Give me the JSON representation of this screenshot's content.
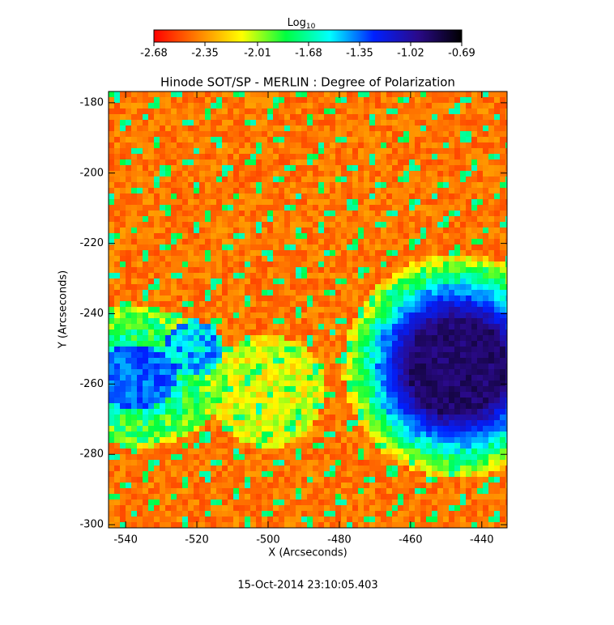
{
  "chart_data": {
    "type": "heatmap",
    "title": "Hinode SOT/SP - MERLIN : Degree of Polarization",
    "x_label": "X (Arcseconds)",
    "y_label": "Y (Arcseconds)",
    "footer": "15-Oct-2014 23:10:05.403",
    "colorbar_label": "Log",
    "colorbar_label_sub": "10",
    "colorbar_lim": [
      -2.68,
      -0.69
    ],
    "colorbar_ticks": [
      -2.68,
      -2.35,
      -2.01,
      -1.68,
      -1.35,
      -1.02,
      -0.69
    ],
    "colormap": [
      "#ff0000",
      "#ff8000",
      "#ffff00",
      "#00ff40",
      "#00ffff",
      "#0020ff",
      "#2a0a8a",
      "#000000"
    ],
    "xlim": [
      -544.8,
      -432.9
    ],
    "xticks": [
      -540,
      -520,
      -500,
      -480,
      -460,
      -440
    ],
    "ylim": [
      -300.9,
      -176.8
    ],
    "yticks": [
      -180,
      -200,
      -220,
      -240,
      -260,
      -280,
      -300
    ]
  }
}
